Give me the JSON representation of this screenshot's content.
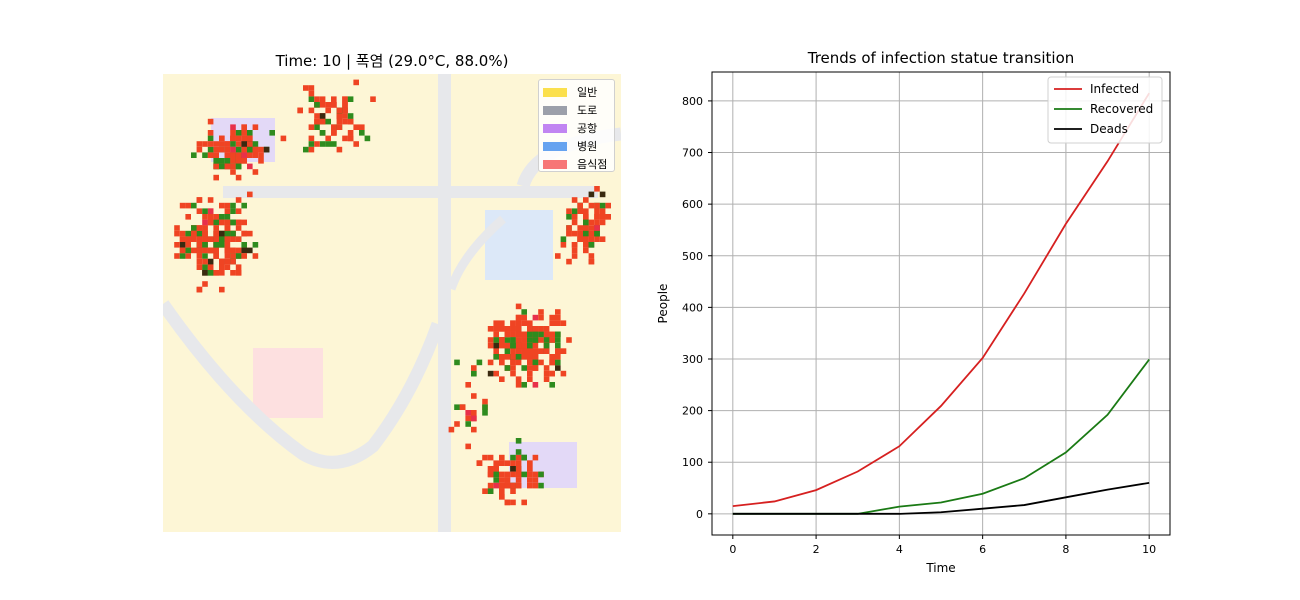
{
  "map_panel": {
    "title": "Time: 10 | 폭염 (29.0°C, 88.0%)",
    "colors": {
      "background": "#fdf6d6",
      "road": "#e7e8eb",
      "infected": "#ef4423",
      "recovered": "#2e8b1e",
      "dead": "#3a2a10",
      "airport_highlight": "#e3d9f7",
      "hospital_highlight": "#dce8f8",
      "restaurant_highlight": "#fde0e0",
      "accent_pink": "#e8304a"
    },
    "legend": [
      {
        "label": "일반",
        "color": "#fbe04c"
      },
      {
        "label": "도로",
        "color": "#9ca0aa"
      },
      {
        "label": "공항",
        "color": "#c185f2"
      },
      {
        "label": "병원",
        "color": "#66a3f0"
      },
      {
        "label": "음식점",
        "color": "#f77676"
      }
    ]
  },
  "chart_data": {
    "type": "line",
    "title": "Trends of infection statue transition",
    "xlabel": "Time",
    "ylabel": "People",
    "x": [
      0,
      1,
      2,
      3,
      4,
      5,
      6,
      7,
      8,
      9,
      10
    ],
    "series": [
      {
        "name": "Infected",
        "color": "#d62020",
        "values": [
          15,
          24,
          46,
          82,
          131,
          209,
          302,
          427,
          562,
          683,
          815
        ]
      },
      {
        "name": "Recovered",
        "color": "#1a7a14",
        "values": [
          0,
          0,
          0,
          0,
          14,
          22,
          39,
          69,
          119,
          192,
          299
        ]
      },
      {
        "name": "Deads",
        "color": "#000000",
        "values": [
          0,
          0,
          0,
          0,
          0,
          3,
          10,
          17,
          32,
          47,
          60
        ]
      }
    ],
    "xlim": [
      -0.5,
      10.5
    ],
    "ylim": [
      -41,
      856
    ],
    "xticks": [
      0,
      2,
      4,
      6,
      8,
      10
    ],
    "yticks": [
      0,
      100,
      200,
      300,
      400,
      500,
      600,
      700,
      800
    ],
    "grid": true,
    "legend_position": "top-right"
  }
}
